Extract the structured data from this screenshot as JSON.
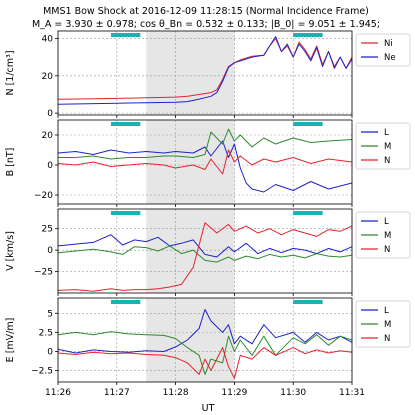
{
  "title_line1": "MMS1 Bow Shock at 2016-12-09 11:28:15 (Normal Incidence Frame)",
  "title_line2": "M_A =   3.930 ± 0.978; cos θ_Bn =   0.532 ± 0.133; |B_0| =   9.051 ± 1.945;",
  "chart_data": {
    "type": "line",
    "x_axis": {
      "label": "UT",
      "ticks": [
        "11:26",
        "11:27",
        "11:28",
        "11:29",
        "11:30",
        "11:31"
      ],
      "range_min": [
        0,
        5
      ]
    },
    "shaded_interval_min": [
      1.5,
      3.0
    ],
    "teal_markers_min": [
      [
        0.9,
        1.4
      ],
      [
        4.0,
        4.5
      ]
    ],
    "colors": {
      "Ni": "#e8212f",
      "Ne": "#1f22c9",
      "L": "#1f22c9",
      "M": "#2d8c2d",
      "N": "#e8212f",
      "marker": "#17b3b3"
    },
    "panels": [
      {
        "ylabel": "N [1/cm³]",
        "ylim": [
          -1,
          44
        ],
        "yticks": [
          0,
          20,
          40
        ],
        "legend": [
          "Ni",
          "Ne"
        ],
        "series": [
          {
            "name": "Ni",
            "x": [
              0,
              0.5,
              1,
              1.5,
              2,
              2.2,
              2.4,
              2.6,
              2.7,
              2.8,
              2.9,
              3,
              3.1,
              3.3,
              3.5,
              3.6,
              3.7,
              3.8,
              3.9,
              4,
              4.1,
              4.2,
              4.3,
              4.4,
              4.5,
              4.6,
              4.7,
              4.8,
              4.9,
              5
            ],
            "values": [
              7.4,
              7.6,
              7.9,
              8.2,
              8.6,
              9,
              10,
              11,
              12.5,
              18,
              25,
              27,
              28.5,
              30.5,
              31,
              36,
              40,
              33,
              36,
              30,
              38,
              34,
              29,
              36,
              26,
              33,
              25,
              30,
              24,
              30
            ]
          },
          {
            "name": "Ne",
            "x": [
              0,
              0.5,
              1,
              1.5,
              2,
              2.2,
              2.4,
              2.6,
              2.7,
              2.8,
              2.9,
              3,
              3.1,
              3.3,
              3.5,
              3.6,
              3.7,
              3.8,
              3.9,
              4,
              4.1,
              4.2,
              4.3,
              4.4,
              4.5,
              4.6,
              4.7,
              4.8,
              4.9,
              5
            ],
            "values": [
              4.8,
              5,
              5.3,
              5.6,
              5.8,
              6.2,
              7.5,
              9,
              11,
              17,
              24.5,
              27,
              28,
              30,
              31,
              36,
              41,
              33,
              37,
              30,
              37,
              33,
              28,
              35,
              25,
              33,
              24,
              30,
              24,
              29
            ]
          }
        ]
      },
      {
        "ylabel": "B [nT]",
        "ylim": [
          -26,
          30
        ],
        "yticks": [
          -20,
          0,
          20
        ],
        "legend": [
          "L",
          "M",
          "N"
        ],
        "series": [
          {
            "name": "L",
            "x": [
              0,
              0.3,
              0.6,
              0.9,
              1.2,
              1.5,
              1.8,
              2,
              2.3,
              2.5,
              2.6,
              2.8,
              2.9,
              3,
              3.1,
              3.2,
              3.3,
              3.5,
              3.7,
              4,
              4.3,
              4.6,
              5
            ],
            "values": [
              8,
              9,
              7,
              10,
              8,
              9,
              8,
              9,
              8,
              12,
              6,
              16,
              5,
              14,
              -2,
              -12,
              -16,
              -18,
              -13,
              -17,
              -11,
              -16,
              -12
            ]
          },
          {
            "name": "M",
            "x": [
              0,
              0.3,
              0.6,
              0.9,
              1.2,
              1.5,
              1.8,
              2,
              2.3,
              2.5,
              2.6,
              2.8,
              2.9,
              3,
              3.1,
              3.3,
              3.5,
              3.7,
              4,
              4.3,
              4.6,
              5
            ],
            "values": [
              5,
              5,
              6,
              4,
              5,
              5,
              6,
              6,
              5,
              7,
              22,
              14,
              24,
              16,
              20,
              12,
              18,
              14,
              18,
              15,
              16,
              17
            ]
          },
          {
            "name": "N",
            "x": [
              0,
              0.3,
              0.6,
              0.9,
              1.2,
              1.5,
              1.8,
              2,
              2.3,
              2.5,
              2.6,
              2.8,
              2.9,
              3,
              3.1,
              3.3,
              3.5,
              3.7,
              4,
              4.3,
              4.6,
              5
            ],
            "values": [
              1,
              0,
              2,
              -1,
              0,
              1,
              0,
              -2,
              0,
              -3,
              4,
              -6,
              10,
              2,
              6,
              0,
              4,
              2,
              5,
              1,
              4,
              2
            ]
          }
        ]
      },
      {
        "ylabel": "V [km/s]",
        "ylim": [
          -50,
          48
        ],
        "yticks": [
          -25,
          0,
          25
        ],
        "legend": [
          "L",
          "M",
          "N"
        ],
        "series": [
          {
            "name": "L",
            "x": [
              0,
              0.3,
              0.6,
              0.9,
              1.1,
              1.3,
              1.5,
              1.7,
              1.9,
              2.1,
              2.3,
              2.5,
              2.7,
              2.9,
              3,
              3.2,
              3.4,
              3.6,
              3.8,
              4,
              4.2,
              4.4,
              4.6,
              4.8,
              5
            ],
            "values": [
              5,
              7,
              9,
              18,
              6,
              12,
              10,
              15,
              5,
              8,
              12,
              -5,
              -8,
              4,
              -2,
              8,
              -4,
              2,
              -3,
              2,
              0,
              -4,
              2,
              -2,
              4
            ]
          },
          {
            "name": "M",
            "x": [
              0,
              0.3,
              0.6,
              0.9,
              1.1,
              1.3,
              1.5,
              1.7,
              1.9,
              2.1,
              2.3,
              2.5,
              2.7,
              2.9,
              3,
              3.2,
              3.4,
              3.6,
              3.8,
              4,
              4.2,
              4.4,
              4.6,
              4.8,
              5
            ],
            "values": [
              -3,
              -1,
              1,
              -2,
              -5,
              4,
              3,
              -1,
              5,
              -4,
              0,
              -12,
              -14,
              -8,
              -12,
              -7,
              -10,
              -5,
              -8,
              -6,
              -9,
              -4,
              -7,
              -8,
              -6
            ]
          },
          {
            "name": "N",
            "x": [
              0,
              0.3,
              0.6,
              0.9,
              1.1,
              1.3,
              1.5,
              1.7,
              1.9,
              2.1,
              2.3,
              2.5,
              2.7,
              2.9,
              3,
              3.2,
              3.4,
              3.6,
              3.8,
              4,
              4.2,
              4.4,
              4.6,
              4.8,
              5
            ],
            "values": [
              -47,
              -46,
              -48,
              -45,
              -47,
              -46,
              -46,
              -45,
              -43,
              -40,
              -20,
              32,
              20,
              30,
              22,
              28,
              20,
              25,
              18,
              24,
              20,
              16,
              24,
              22,
              28
            ]
          }
        ]
      },
      {
        "ylabel": "E [mV/m]",
        "ylim": [
          -4,
          7
        ],
        "yticks": [
          -2.5,
          0,
          2.5,
          5
        ],
        "legend": [
          "L",
          "M",
          "N"
        ],
        "series": [
          {
            "name": "L",
            "x": [
              0,
              0.3,
              0.6,
              0.9,
              1.2,
              1.5,
              1.8,
              2,
              2.2,
              2.4,
              2.5,
              2.6,
              2.8,
              2.9,
              3,
              3.1,
              3.3,
              3.5,
              3.7,
              4,
              4.2,
              4.4,
              4.6,
              4.8,
              5
            ],
            "values": [
              0.3,
              -0.2,
              0.2,
              0,
              -0.1,
              0.1,
              0,
              0.6,
              1.5,
              3,
              5.5,
              4,
              2.5,
              3.5,
              1,
              2,
              1,
              3.5,
              1.8,
              2.5,
              1.2,
              2.5,
              1.5,
              2,
              1.2
            ]
          },
          {
            "name": "M",
            "x": [
              0,
              0.3,
              0.6,
              0.9,
              1.2,
              1.5,
              1.8,
              2,
              2.2,
              2.4,
              2.5,
              2.6,
              2.8,
              2.9,
              3,
              3.1,
              3.3,
              3.5,
              3.7,
              4,
              4.2,
              4.4,
              4.6,
              4.8,
              5
            ],
            "values": [
              2.2,
              2.5,
              2.2,
              2.6,
              2.3,
              2.2,
              2.1,
              1.7,
              0.5,
              -0.5,
              -3,
              -1,
              -1.5,
              2,
              0,
              1.5,
              -0.5,
              2,
              -0.5,
              1.8,
              1,
              2.2,
              0.8,
              2,
              1.5
            ]
          },
          {
            "name": "N",
            "x": [
              0,
              0.3,
              0.6,
              0.9,
              1.2,
              1.5,
              1.8,
              2,
              2.2,
              2.4,
              2.5,
              2.6,
              2.8,
              2.9,
              3,
              3.1,
              3.3,
              3.5,
              3.7,
              4,
              4.2,
              4.4,
              4.6,
              4.8,
              5
            ],
            "values": [
              -0.2,
              -0.4,
              -0.1,
              -0.3,
              -0.2,
              -0.4,
              -0.5,
              -0.8,
              -1.5,
              -3,
              -1,
              -2.5,
              0.5,
              -2,
              -3.5,
              -0.5,
              -1,
              0.5,
              -0.5,
              0.5,
              -0.3,
              0.2,
              -0.2,
              0.1,
              -0.1
            ]
          }
        ]
      }
    ]
  }
}
